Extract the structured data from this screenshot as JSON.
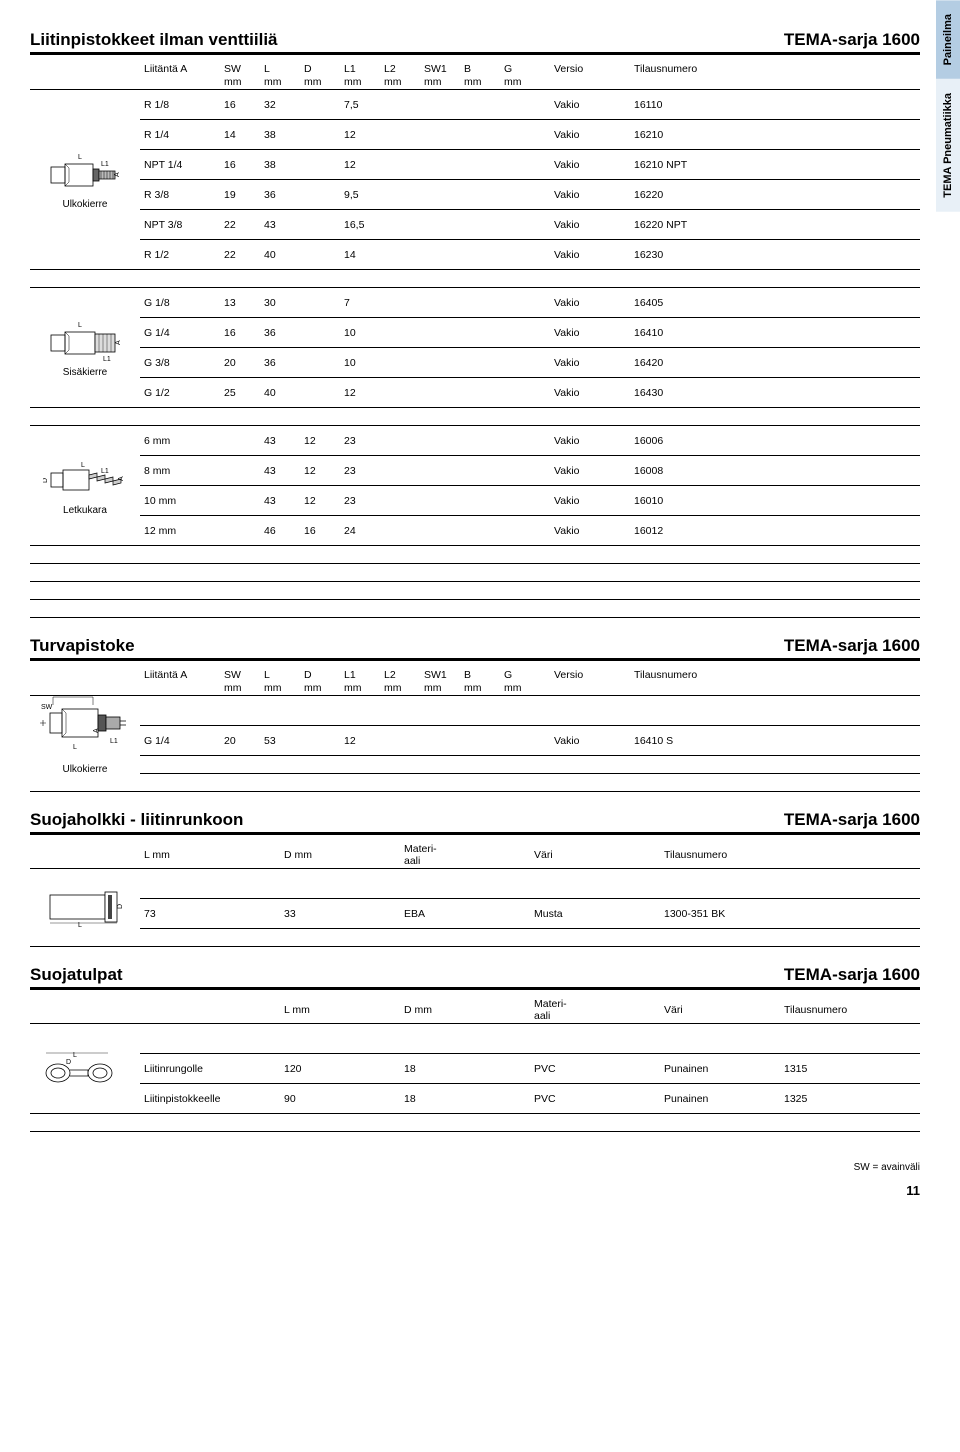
{
  "sideTabs": [
    {
      "label": "Paineilma",
      "class": "dark"
    },
    {
      "label": "TEMA Pneumatiikka",
      "class": "light"
    }
  ],
  "colHeaders": {
    "liitanta": "Liitäntä A",
    "sw": "SW",
    "l": "L",
    "d": "D",
    "l1": "L1",
    "l2": "L2",
    "sw1": "SW1",
    "b": "B",
    "g": "G",
    "versio": "Versio",
    "tilaus": "Tilausnumero",
    "mm": "mm",
    "lmm": "L mm",
    "dmm": "D mm",
    "materiaali": "Materi-\naali",
    "vari": "Väri"
  },
  "section1": {
    "title": "Liitinpistokkeet ilman venttiiliä",
    "series": "TEMA-sarja 1600",
    "groups": [
      {
        "diagramLabel": "Ulkokierre",
        "diagramType": "ext-thread",
        "rows": [
          {
            "a": "R 1/8",
            "sw": "16",
            "l": "32",
            "l1": "7,5",
            "versio": "Vakio",
            "tilaus": "16110"
          },
          {
            "a": "R 1/4",
            "sw": "14",
            "l": "38",
            "l1": "12",
            "versio": "Vakio",
            "tilaus": "16210"
          },
          {
            "a": "NPT 1/4",
            "sw": "16",
            "l": "38",
            "l1": "12",
            "versio": "Vakio",
            "tilaus": "16210 NPT"
          },
          {
            "a": "R 3/8",
            "sw": "19",
            "l": "36",
            "l1": "9,5",
            "versio": "Vakio",
            "tilaus": "16220"
          },
          {
            "a": "NPT 3/8",
            "sw": "22",
            "l": "43",
            "l1": "16,5",
            "versio": "Vakio",
            "tilaus": "16220 NPT"
          },
          {
            "a": "R 1/2",
            "sw": "22",
            "l": "40",
            "l1": "14",
            "versio": "Vakio",
            "tilaus": "16230"
          }
        ]
      },
      {
        "diagramLabel": "Sisäkierre",
        "diagramType": "int-thread",
        "rows": [
          {
            "a": "G 1/8",
            "sw": "13",
            "l": "30",
            "l1": "7",
            "versio": "Vakio",
            "tilaus": "16405"
          },
          {
            "a": "G 1/4",
            "sw": "16",
            "l": "36",
            "l1": "10",
            "versio": "Vakio",
            "tilaus": "16410"
          },
          {
            "a": "G 3/8",
            "sw": "20",
            "l": "36",
            "l1": "10",
            "versio": "Vakio",
            "tilaus": "16420"
          },
          {
            "a": "G 1/2",
            "sw": "25",
            "l": "40",
            "l1": "12",
            "versio": "Vakio",
            "tilaus": "16430"
          }
        ]
      },
      {
        "diagramLabel": "Letkukara",
        "diagramType": "hose-barb",
        "rows": [
          {
            "a": "6 mm",
            "l": "43",
            "d": "12",
            "l1": "23",
            "versio": "Vakio",
            "tilaus": "16006"
          },
          {
            "a": "8 mm",
            "l": "43",
            "d": "12",
            "l1": "23",
            "versio": "Vakio",
            "tilaus": "16008"
          },
          {
            "a": "10 mm",
            "l": "43",
            "d": "12",
            "l1": "23",
            "versio": "Vakio",
            "tilaus": "16010"
          },
          {
            "a": "12 mm",
            "l": "46",
            "d": "16",
            "l1": "24",
            "versio": "Vakio",
            "tilaus": "16012"
          }
        ]
      }
    ]
  },
  "section2": {
    "title": "Turvapistoke",
    "series": "TEMA-sarja 1600",
    "diagramLabel": "Ulkokierre",
    "row": {
      "a": "G 1/4",
      "sw": "20",
      "l": "53",
      "l1": "12",
      "versio": "Vakio",
      "tilaus": "16410 S"
    }
  },
  "section3": {
    "title": "Suojaholkki - liitinrunkoon",
    "series": "TEMA-sarja 1600",
    "row": {
      "l": "73",
      "d": "33",
      "mat": "EBA",
      "vari": "Musta",
      "tilaus": "1300-351 BK"
    }
  },
  "section4": {
    "title": "Suojatulpat",
    "series": "TEMA-sarja 1600",
    "rows": [
      {
        "label": "Liitinrungolle",
        "l": "120",
        "d": "18",
        "mat": "PVC",
        "vari": "Punainen",
        "tilaus": "1315"
      },
      {
        "label": "Liitinpistokkeelle",
        "l": "90",
        "d": "18",
        "mat": "PVC",
        "vari": "Punainen",
        "tilaus": "1325"
      }
    ]
  },
  "footer": "SW = avainväli",
  "pageNum": "11"
}
